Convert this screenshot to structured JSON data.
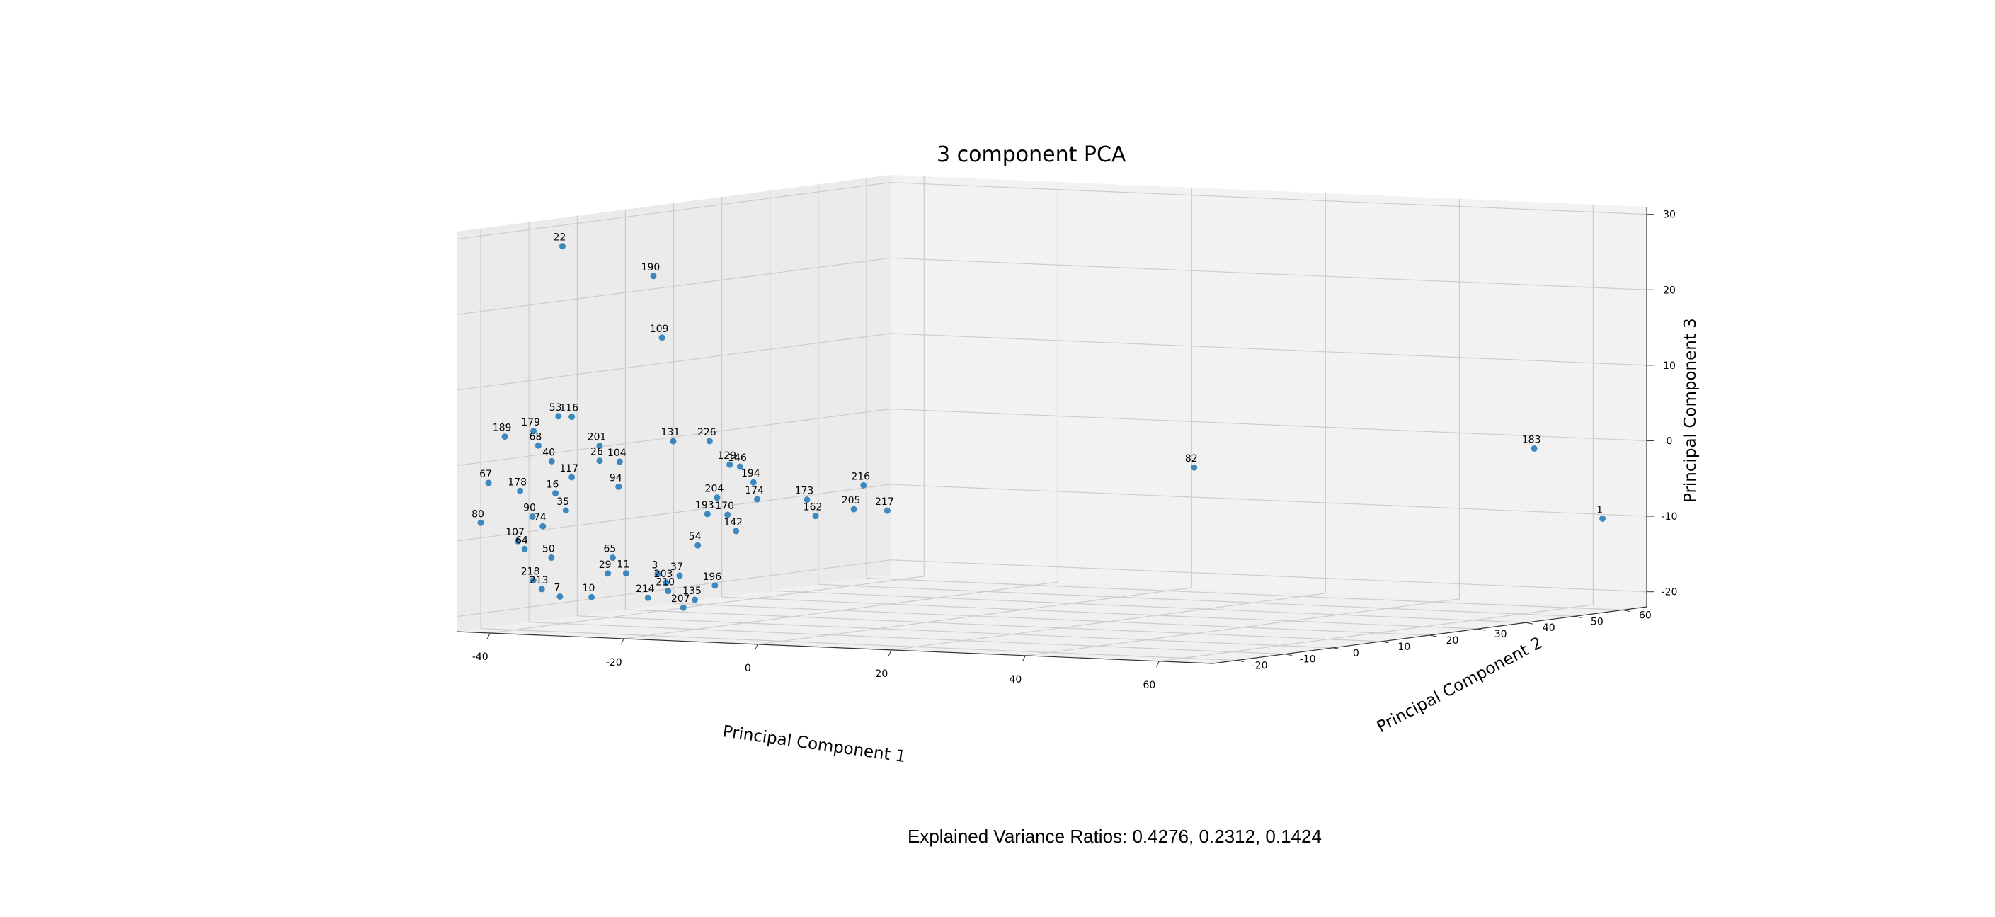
{
  "chart_data": {
    "type": "scatter",
    "projection": "3d",
    "title": "3 component PCA",
    "xlabel": "Principal Component 1",
    "ylabel": "Principal Component 2",
    "zlabel": "Principal Component 3",
    "xlim": [
      -45,
      68
    ],
    "ylim": [
      -25,
      65
    ],
    "zlim": [
      -22,
      31
    ],
    "xticks": [
      -40,
      -20,
      0,
      20,
      40,
      60
    ],
    "yticks": [
      -20,
      -10,
      0,
      10,
      20,
      30,
      40,
      50,
      60
    ],
    "zticks": [
      -20,
      -10,
      0,
      10,
      20,
      30
    ],
    "grid": true,
    "marker_color": "#1f77b4",
    "pane_color": "#f2f2f2",
    "grid_color": "#cccccc",
    "points": [
      {
        "label": "22",
        "x": -40,
        "y": -10,
        "z": 28
      },
      {
        "label": "190",
        "x": -30,
        "y": -5,
        "z": 24
      },
      {
        "label": "109",
        "x": -28,
        "y": -6,
        "z": 16
      },
      {
        "label": "189",
        "x": -45,
        "y": -15,
        "z": 3
      },
      {
        "label": "179",
        "x": -40,
        "y": -16,
        "z": 4
      },
      {
        "label": "53",
        "x": -37,
        "y": -15,
        "z": 6
      },
      {
        "label": "116",
        "x": -35,
        "y": -15,
        "z": 6
      },
      {
        "label": "68",
        "x": -40,
        "y": -15,
        "z": 2
      },
      {
        "label": "67",
        "x": -46,
        "y": -17,
        "z": -3
      },
      {
        "label": "178",
        "x": -42,
        "y": -16,
        "z": -4
      },
      {
        "label": "80",
        "x": -45,
        "y": -20,
        "z": -8
      },
      {
        "label": "90",
        "x": -38,
        "y": -19,
        "z": -7
      },
      {
        "label": "107",
        "x": -38,
        "y": -22,
        "z": -10
      },
      {
        "label": "64",
        "x": -37,
        "y": -22,
        "z": -11
      },
      {
        "label": "74",
        "x": -35,
        "y": -21,
        "z": -8
      },
      {
        "label": "35",
        "x": -33,
        "y": -19,
        "z": -6
      },
      {
        "label": "16",
        "x": -36,
        "y": -17,
        "z": -4
      },
      {
        "label": "117",
        "x": -35,
        "y": -15,
        "z": -2
      },
      {
        "label": "40",
        "x": -38,
        "y": -15,
        "z": 0
      },
      {
        "label": "201",
        "x": -33,
        "y": -12,
        "z": 2
      },
      {
        "label": "26",
        "x": -33,
        "y": -12,
        "z": 0
      },
      {
        "label": "104",
        "x": -30,
        "y": -12,
        "z": 0
      },
      {
        "label": "50",
        "x": -33,
        "y": -22,
        "z": -12
      },
      {
        "label": "218",
        "x": -35,
        "y": -23,
        "z": -15
      },
      {
        "label": "213",
        "x": -33,
        "y": -24,
        "z": -16
      },
      {
        "label": "7",
        "x": -31,
        "y": -23,
        "z": -17
      },
      {
        "label": "10",
        "x": -27,
        "y": -22,
        "z": -17
      },
      {
        "label": "29",
        "x": -26,
        "y": -20,
        "z": -14
      },
      {
        "label": "65",
        "x": -26,
        "y": -19,
        "z": -12
      },
      {
        "label": "11",
        "x": -24,
        "y": -19,
        "z": -14
      },
      {
        "label": "3",
        "x": -20,
        "y": -18,
        "z": -14
      },
      {
        "label": "94",
        "x": -28,
        "y": -15,
        "z": -3
      },
      {
        "label": "131",
        "x": -22,
        "y": -12,
        "z": 3
      },
      {
        "label": "226",
        "x": -18,
        "y": -10,
        "z": 3
      },
      {
        "label": "129",
        "x": -15,
        "y": -10,
        "z": 0
      },
      {
        "label": "146",
        "x": -12,
        "y": -12,
        "z": 0
      },
      {
        "label": "194",
        "x": -10,
        "y": -12,
        "z": -2
      },
      {
        "label": "174",
        "x": -8,
        "y": -14,
        "z": -4
      },
      {
        "label": "173",
        "x": -2,
        "y": -12,
        "z": -4
      },
      {
        "label": "216",
        "x": 5,
        "y": -10,
        "z": -2
      },
      {
        "label": "205",
        "x": 5,
        "y": -12,
        "z": -5
      },
      {
        "label": "217",
        "x": 10,
        "y": -12,
        "z": -5
      },
      {
        "label": "162",
        "x": 0,
        "y": -13,
        "z": -6
      },
      {
        "label": "204",
        "x": -14,
        "y": -14,
        "z": -4
      },
      {
        "label": "193",
        "x": -14,
        "y": -16,
        "z": -6
      },
      {
        "label": "170",
        "x": -11,
        "y": -16,
        "z": -6
      },
      {
        "label": "142",
        "x": -9,
        "y": -17,
        "z": -8
      },
      {
        "label": "54",
        "x": -14,
        "y": -18,
        "z": -10
      },
      {
        "label": "196",
        "x": -10,
        "y": -20,
        "z": -15
      },
      {
        "label": "37",
        "x": -16,
        "y": -19,
        "z": -14
      },
      {
        "label": "203",
        "x": -18,
        "y": -19,
        "z": -15
      },
      {
        "label": "214",
        "x": -20,
        "y": -20,
        "z": -17
      },
      {
        "label": "210",
        "x": -17,
        "y": -20,
        "z": -16
      },
      {
        "label": "135",
        "x": -13,
        "y": -20,
        "z": -17
      },
      {
        "label": "207",
        "x": -14,
        "y": -21,
        "z": -18
      },
      {
        "label": "82",
        "x": 40,
        "y": 10,
        "z": 0
      },
      {
        "label": "183",
        "x": 62,
        "y": 50,
        "z": 0
      },
      {
        "label": "1",
        "x": 65,
        "y": 60,
        "z": -10
      }
    ]
  },
  "caption": "Explained Variance Ratios: 0.4276, 0.2312, 0.1424"
}
